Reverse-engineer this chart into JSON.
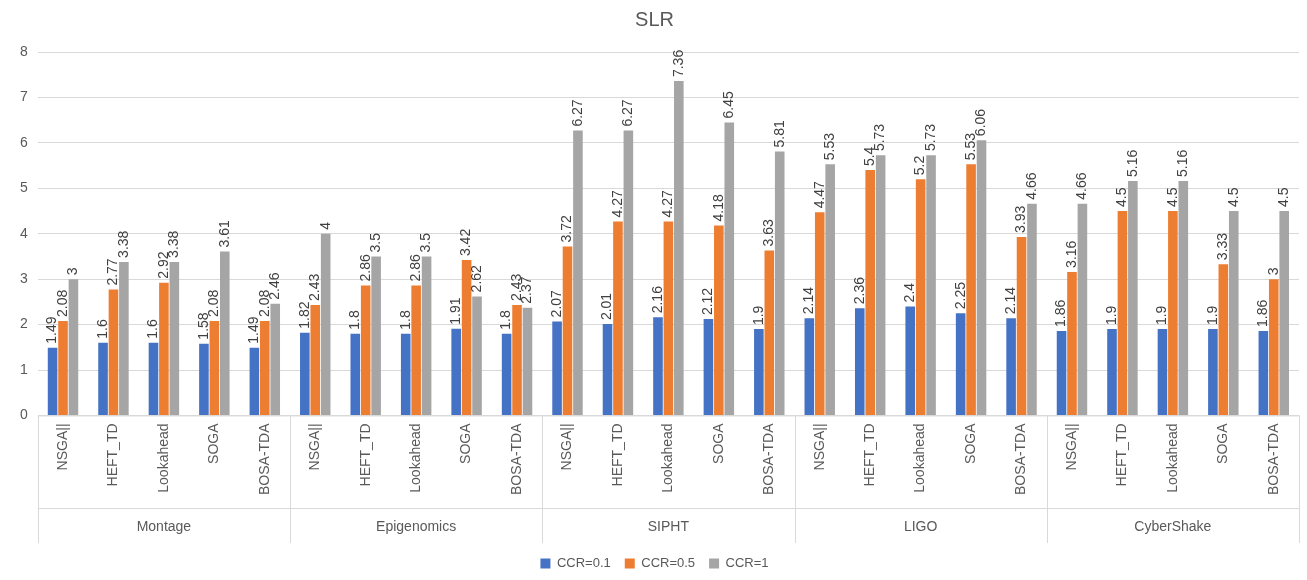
{
  "chart_data": {
    "type": "bar",
    "title": "SLR",
    "categories": [
      "NSGA||",
      "HEFT_TD",
      "Lookahead",
      "SOGA",
      "BOSA-TDA",
      "NSGA||",
      "HEFT_TD",
      "Lookahead",
      "SOGA",
      "BOSA-TDA",
      "NSGA||",
      "HEFT_TD",
      "Lookahead",
      "SOGA",
      "BOSA-TDA",
      "NSGA||",
      "HEFT_TD",
      "Lookahead",
      "SOGA",
      "BOSA-TDA",
      "NSGA||",
      "HEFT_TD",
      "Lookahead",
      "SOGA",
      "BOSA-TDA"
    ],
    "annotations": [
      "Montage",
      "Epigenomics",
      "SIPHT",
      "LIGO",
      "CyberShake"
    ],
    "series": [
      {
        "name": "CCR=0.1",
        "color": "#4472c4",
        "values": [
          1.49,
          1.6,
          1.6,
          1.58,
          1.49,
          1.82,
          1.8,
          1.8,
          1.91,
          1.8,
          2.07,
          2.01,
          2.16,
          2.12,
          1.9,
          2.14,
          2.36,
          2.4,
          2.25,
          2.14,
          1.86,
          1.9,
          1.9,
          1.9,
          1.86
        ]
      },
      {
        "name": "CCR=0.5",
        "color": "#ed7d31",
        "values": [
          2.08,
          2.77,
          2.92,
          2.08,
          2.08,
          2.43,
          2.86,
          2.86,
          3.42,
          2.43,
          3.72,
          4.27,
          4.27,
          4.18,
          3.63,
          4.47,
          5.4,
          5.2,
          5.53,
          3.93,
          3.16,
          4.5,
          4.5,
          3.33,
          3
        ]
      },
      {
        "name": "CCR=1",
        "color": "#a5a5a5",
        "values": [
          3,
          3.38,
          3.38,
          3.61,
          2.46,
          4,
          3.5,
          3.5,
          2.62,
          2.37,
          6.27,
          6.27,
          7.36,
          6.45,
          5.81,
          5.53,
          5.73,
          5.73,
          6.06,
          4.66,
          4.66,
          5.16,
          5.16,
          4.5,
          4.5
        ]
      }
    ],
    "ylim": [
      0,
      8
    ],
    "yticks": [
      0,
      1,
      2,
      3,
      4,
      5,
      6,
      7,
      8
    ],
    "grid": "y",
    "legend": "bottom",
    "data_labels": true
  }
}
